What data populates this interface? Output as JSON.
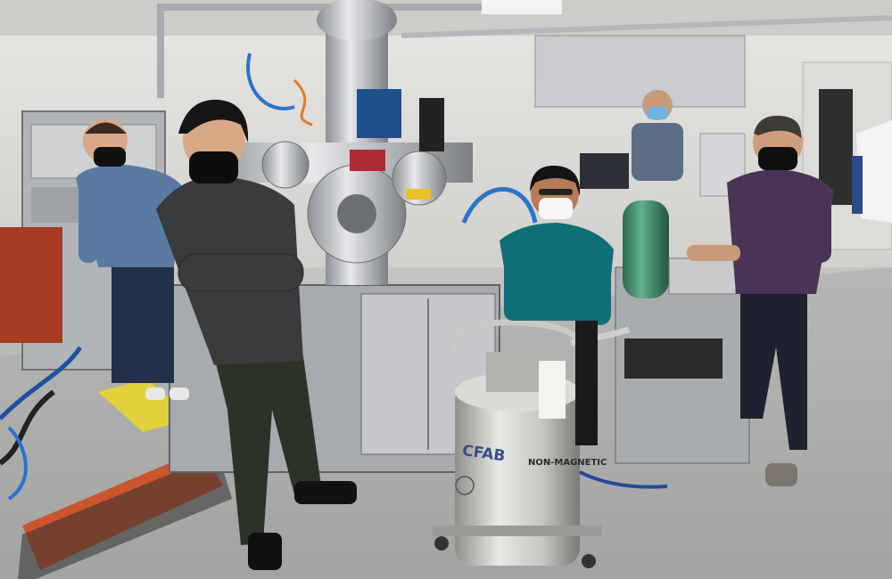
{
  "photo": {
    "dewar_label": "CFAB",
    "dewar_label_2": "NON-MAGNETIC",
    "colors": {
      "wall": "#d9d8d4",
      "floor": "#b7b8b5",
      "steel": "#b9bcc0",
      "teal_shirt": "#0f6f78",
      "purple_shirt": "#4a3456",
      "green_cylinder": "#3f8f6b",
      "orange_mat": "#c9562c",
      "yellow_mat": "#e3d13c"
    }
  }
}
